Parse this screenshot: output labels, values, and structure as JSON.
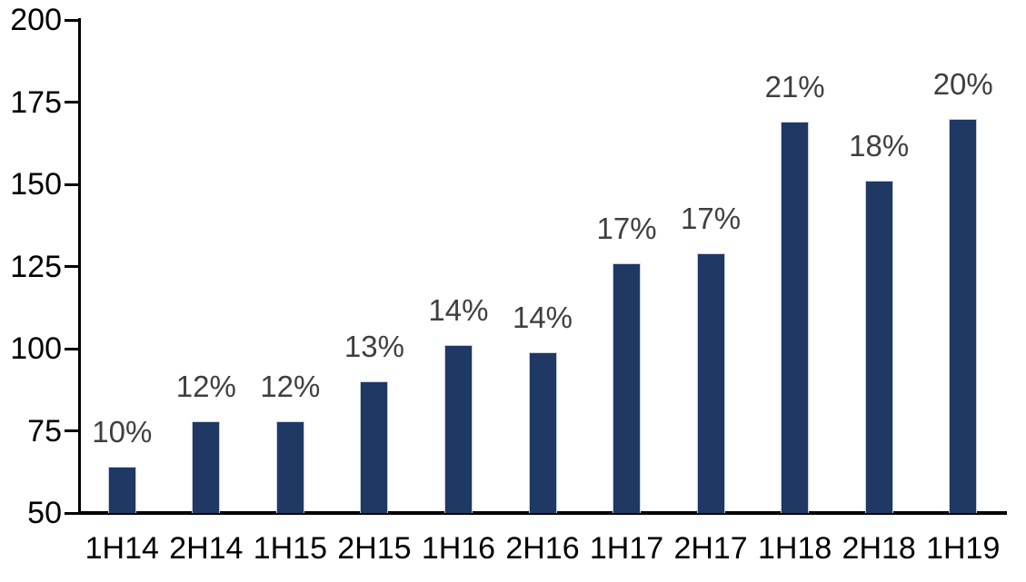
{
  "chart_data": {
    "type": "bar",
    "categories": [
      "1H14",
      "2H14",
      "1H15",
      "2H15",
      "1H16",
      "2H16",
      "1H17",
      "2H17",
      "1H18",
      "2H18",
      "1H19"
    ],
    "values": [
      64,
      78,
      78,
      90,
      101,
      99,
      126,
      129,
      169,
      151,
      170
    ],
    "bar_labels": [
      "10%",
      "12%",
      "12%",
      "13%",
      "14%",
      "14%",
      "17%",
      "17%",
      "21%",
      "18%",
      "20%"
    ],
    "yticks": [
      50,
      75,
      100,
      125,
      150,
      175,
      200
    ],
    "ylim": [
      50,
      200
    ],
    "grid": false,
    "legend": "none",
    "colors": {
      "bar_fill": "#1f3864",
      "bar_border": "#c9cfda",
      "value_label": "#3f3f3f",
      "axis_text": "#000000",
      "axis_line": "#000000"
    }
  }
}
